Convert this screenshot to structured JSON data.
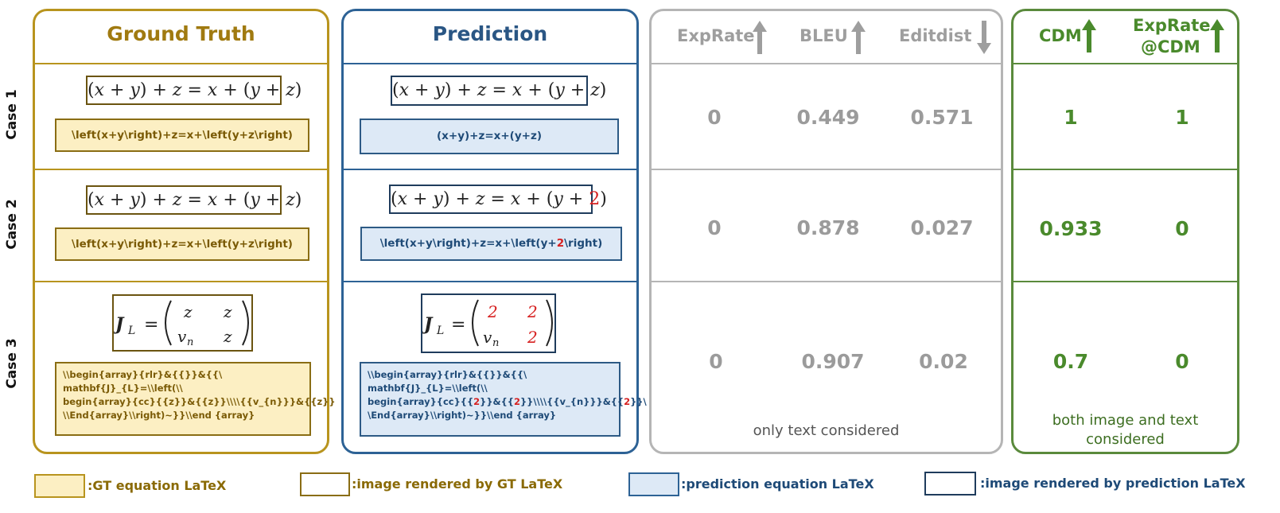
{
  "ground_truth": {
    "title": "Ground Truth",
    "cases": [
      {
        "equation_image": "(x+y)+z=x+(y+z)",
        "latex": "\\left(x+y\\right)+z=x+\\left(y+z\\right)"
      },
      {
        "equation_image": "(x+y)+z=x+(y+z)",
        "latex": "\\left(x+y\\right)+z=x+\\left(y+z\\right)"
      },
      {
        "equation_image": "J_L = (z z; v_n z)",
        "latex_lines": [
          "\\\\begin{array}{rlr}&{{}}&{{\\",
          "mathbf{J}_{L}=\\\\left(\\\\",
          "begin{array}{cc}{{z}}&{{z}}\\\\\\\\{{v_{n}}}&{{z}}",
          "\\\\End{array}\\\\right)~}}\\\\end {array}"
        ]
      }
    ]
  },
  "prediction": {
    "title": "Prediction",
    "cases": [
      {
        "equation_image": "(x+y)+z=x+(y+z)",
        "latex": "(x+y)+z=x+(y+z)"
      },
      {
        "equation_image": "(x+y)+z=x+(y+2)",
        "latex_before": "\\left(x+y\\right)+z=x+\\left(y+",
        "latex_red": "2",
        "latex_after": "\\right)"
      },
      {
        "equation_image": "J_L = (2 2; v_n 2)",
        "latex_lines": [
          [
            "\\\\begin{array}{rlr}&{{}}&{{\\"
          ],
          [
            "mathbf{J}_{L}=\\\\left(\\\\"
          ],
          [
            "begin{array}{cc}{{",
            "2",
            "}}&{{",
            "2",
            "}}\\\\\\\\{{v_{n}}}&{{",
            "2",
            "}}\\"
          ],
          [
            "\\End{array}\\\\right)~}}\\\\end {array}"
          ]
        ]
      }
    ]
  },
  "case_labels": [
    "Case 1",
    "Case 2",
    "Case 3"
  ],
  "text_metrics": {
    "headers": [
      "ExpRate",
      "BLEU",
      "Editdist"
    ],
    "header_arrows": [
      "up",
      "up",
      "down"
    ],
    "rows": [
      [
        "0",
        "0.449",
        "0.571"
      ],
      [
        "0",
        "0.878",
        "0.027"
      ],
      [
        "0",
        "0.907",
        "0.02"
      ]
    ],
    "note": "only text considered"
  },
  "cdm_metrics": {
    "headers": [
      "CDM",
      "ExpRate\n@CDM"
    ],
    "header_line1": "ExpRate",
    "header_line2": "@CDM",
    "rows": [
      [
        "1",
        "1"
      ],
      [
        "0.933",
        "0"
      ],
      [
        "0.7",
        "0"
      ]
    ],
    "note_line1": "both image and text",
    "note_line2": "considered"
  },
  "legend": [
    {
      "label": ":GT equation LaTeX"
    },
    {
      "label": ":image rendered by GT LaTeX"
    },
    {
      "label": ":prediction equation LaTeX"
    },
    {
      "label": ":image rendered by prediction LaTeX"
    }
  ],
  "colors": {
    "gt_border": "#b8941e",
    "gt_fill": "#fcefc3",
    "pred_border": "#2d6295",
    "pred_fill": "#dde9f6",
    "text_metric_border": "#b5b5b5",
    "cdm_border": "#5a8a3c",
    "error_red": "#d62020"
  }
}
